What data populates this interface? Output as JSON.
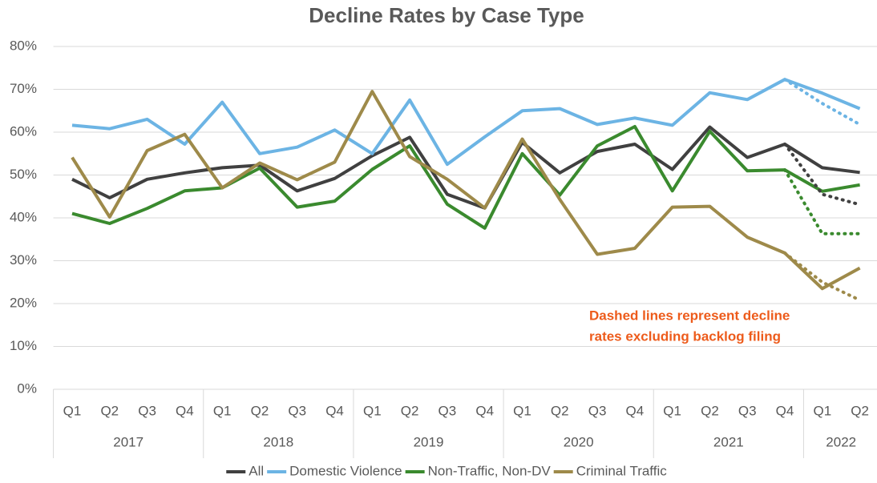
{
  "chart_data": {
    "type": "line",
    "title": "Decline Rates by Case Type",
    "categories": [
      "Q1",
      "Q2",
      "Q3",
      "Q4",
      "Q1",
      "Q2",
      "Q3",
      "Q4",
      "Q1",
      "Q2",
      "Q3",
      "Q4",
      "Q1",
      "Q2",
      "Q3",
      "Q4",
      "Q1",
      "Q2",
      "Q3",
      "Q4",
      "Q1",
      "Q2"
    ],
    "category_groups": [
      "2017",
      "2018",
      "2019",
      "2020",
      "2021",
      "2022"
    ],
    "ylim": [
      0,
      80
    ],
    "yticks": [
      {
        "value": 0,
        "label": "0%"
      },
      {
        "value": 10,
        "label": "10%"
      },
      {
        "value": 20,
        "label": "20%"
      },
      {
        "value": 30,
        "label": "30%"
      },
      {
        "value": 40,
        "label": "40%"
      },
      {
        "value": 50,
        "label": "50%"
      },
      {
        "value": 60,
        "label": "60%"
      },
      {
        "value": 70,
        "label": "70%"
      },
      {
        "value": 80,
        "label": "80%"
      }
    ],
    "grid": true,
    "legend": "bottom",
    "series": [
      {
        "name": "All",
        "color": "#404040",
        "values": [
          49,
          44.7,
          49,
          50.5,
          51.7,
          52.3,
          46.3,
          49.2,
          54.5,
          58.8,
          45.5,
          42.3,
          57.6,
          50.5,
          55.5,
          57.2,
          51.3,
          61.2,
          54.1,
          57.2,
          51.7,
          50.6
        ]
      },
      {
        "name": "Domestic Violence",
        "color": "#6CB4E4",
        "values": [
          61.6,
          60.8,
          63,
          57.2,
          67,
          55,
          56.5,
          60.5,
          55,
          67.5,
          52.5,
          58.9,
          65,
          65.5,
          61.8,
          63.3,
          61.6,
          69.2,
          67.6,
          72.3,
          69.1,
          65.5
        ]
      },
      {
        "name": "Non-Traffic, Non-DV",
        "color": "#3A8A2E",
        "values": [
          41,
          38.7,
          42.2,
          46.3,
          47,
          51.6,
          42.5,
          43.9,
          51.3,
          56.8,
          43.2,
          37.6,
          55,
          45.3,
          56.8,
          61.3,
          46.3,
          60.2,
          51,
          51.2,
          46.2,
          47.7
        ]
      },
      {
        "name": "Criminal Traffic",
        "color": "#9E8A4A",
        "values": [
          54.1,
          40.2,
          55.7,
          59.5,
          47,
          52.8,
          48.9,
          53,
          69.5,
          54.3,
          49,
          42.3,
          58.4,
          44.3,
          31.5,
          32.9,
          42.5,
          42.7,
          35.5,
          31.8,
          23.5,
          28.3
        ]
      }
    ],
    "dashed_series": [
      {
        "color": "#404040",
        "values": [
          null,
          null,
          null,
          null,
          null,
          null,
          null,
          null,
          null,
          null,
          null,
          null,
          null,
          null,
          null,
          null,
          null,
          null,
          null,
          57.2,
          45.5,
          43.1
        ]
      },
      {
        "color": "#6CB4E4",
        "values": [
          null,
          null,
          null,
          null,
          null,
          null,
          null,
          null,
          null,
          null,
          null,
          null,
          null,
          null,
          null,
          null,
          null,
          null,
          null,
          72.3,
          66.7,
          61.8
        ]
      },
      {
        "color": "#3A8A2E",
        "values": [
          null,
          null,
          null,
          null,
          null,
          null,
          null,
          null,
          null,
          null,
          null,
          null,
          null,
          null,
          null,
          null,
          null,
          null,
          null,
          51.2,
          36.3,
          36.3
        ]
      },
      {
        "color": "#9E8A4A",
        "values": [
          null,
          null,
          null,
          null,
          null,
          null,
          null,
          null,
          null,
          null,
          null,
          null,
          null,
          null,
          null,
          null,
          null,
          null,
          null,
          31.8,
          25,
          20.8
        ]
      }
    ],
    "annotation": [
      "Dashed lines represent decline",
      "rates excluding backlog filing"
    ]
  }
}
